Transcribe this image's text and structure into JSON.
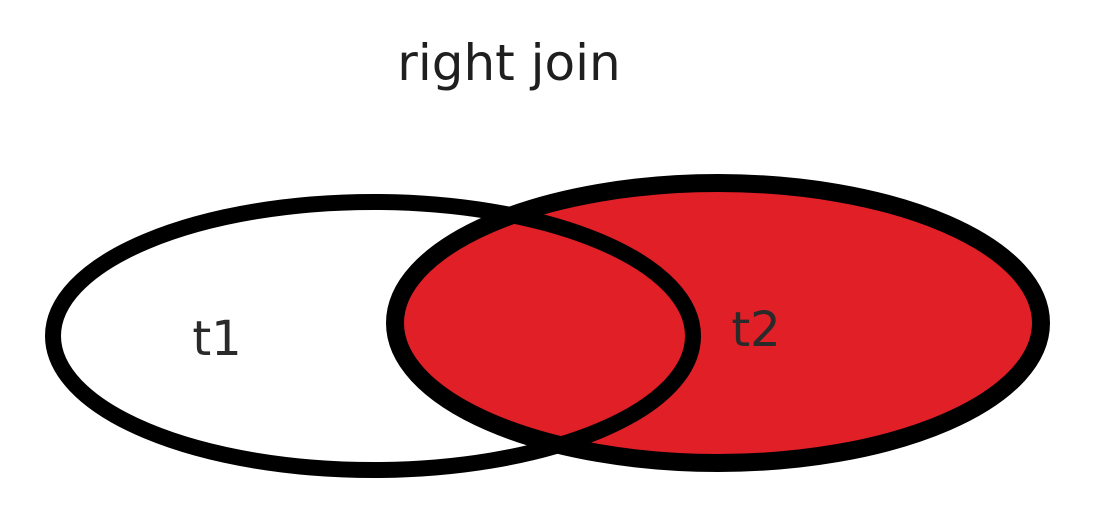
{
  "diagram": {
    "title": "right join",
    "left_set": {
      "label": "t1",
      "fill": "#ffffff"
    },
    "right_set": {
      "label": "t2",
      "fill": "#e01f26"
    },
    "intersection_fill": "#e01f26",
    "outline_color": "#000000"
  }
}
